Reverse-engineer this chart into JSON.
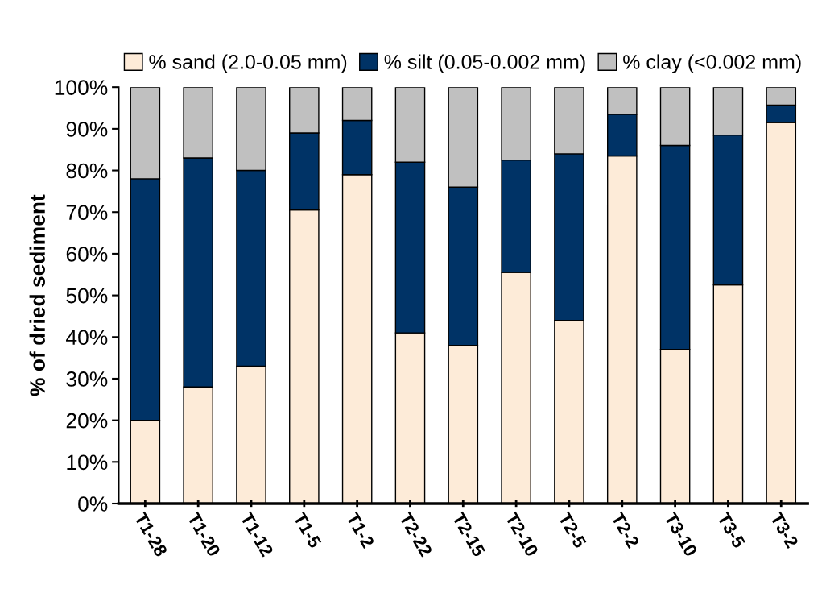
{
  "chart_data": {
    "type": "bar",
    "stacked": true,
    "ylabel": "% of dried sediment",
    "categories": [
      "T1-28",
      "T1-20",
      "T1-12",
      "T1-5",
      "T1-2",
      "T2-22",
      "T2-15",
      "T2-10",
      "T2-5",
      "T2-2",
      "T3-10",
      "T3-5",
      "T3-2"
    ],
    "series": [
      {
        "name": "% sand (2.0-0.05 mm)",
        "color": "#fdebd8",
        "values": [
          20,
          28,
          33,
          70.5,
          79,
          41,
          38,
          55.5,
          44,
          83.5,
          37,
          52.5,
          91.5
        ]
      },
      {
        "name": "% silt (0.05-0.002 mm)",
        "color": "#003366",
        "values": [
          58,
          55,
          47,
          18.5,
          13,
          41,
          38,
          27,
          40,
          10,
          49,
          36,
          4.2
        ]
      },
      {
        "name": "% clay (<0.002 mm)",
        "color": "#c0c0c0",
        "values": [
          22,
          17,
          20,
          11,
          8,
          18,
          24,
          17.5,
          16,
          6.5,
          14,
          11.5,
          4.3
        ]
      }
    ],
    "ylim": [
      0,
      100
    ],
    "yticks": [
      {
        "value": 0,
        "label": "0%"
      },
      {
        "value": 10,
        "label": "10%"
      },
      {
        "value": 20,
        "label": "20%"
      },
      {
        "value": 30,
        "label": "30%"
      },
      {
        "value": 40,
        "label": "40%"
      },
      {
        "value": 50,
        "label": "50%"
      },
      {
        "value": 60,
        "label": "60%"
      },
      {
        "value": 70,
        "label": "70%"
      },
      {
        "value": 80,
        "label": "80%"
      },
      {
        "value": 90,
        "label": "90%"
      },
      {
        "value": 100,
        "label": "100%"
      }
    ],
    "legend": "top",
    "grid": false
  }
}
